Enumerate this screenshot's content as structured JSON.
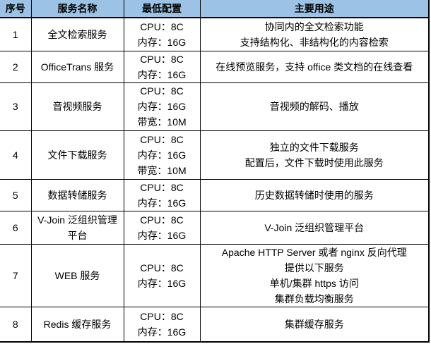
{
  "table": {
    "headers": {
      "no": "序号",
      "name": "服务名称",
      "config": "最低配置",
      "usage": "主要用途"
    },
    "rows": [
      {
        "no": "1",
        "name": "全文检索服务",
        "config": [
          "CPU：8C",
          "内存：16G"
        ],
        "usage": [
          "协同内的全文检索功能",
          "支持结构化、非结构化的内容检索"
        ]
      },
      {
        "no": "2",
        "name": "OfficeTrans 服务",
        "config": [
          "CPU：8C",
          "内存：16G"
        ],
        "usage": [
          "在线预览服务，支持 office 类文档的在线查看"
        ]
      },
      {
        "no": "3",
        "name": "音视频服务",
        "config": [
          "CPU：8C",
          "内存：16G",
          "带宽：10M"
        ],
        "usage": [
          "音视频的解码、播放"
        ]
      },
      {
        "no": "4",
        "name": "文件下载服务",
        "config": [
          "CPU：8C",
          "内存：16G",
          "带宽：10M"
        ],
        "usage": [
          "独立的文件下载服务",
          "配置后，文件下载时使用此服务"
        ]
      },
      {
        "no": "5",
        "name": "数据转储服务",
        "config": [
          "CPU：8C",
          "内存：16G"
        ],
        "usage": [
          "历史数据转储时使用的服务"
        ]
      },
      {
        "no": "6",
        "name": "V-Join 泛组织管理平台",
        "config": [
          "CPU：8C",
          "内存：16G"
        ],
        "usage": [
          "V-Join 泛组织管理平台"
        ]
      },
      {
        "no": "7",
        "name": "WEB 服务",
        "config": [
          "CPU：8C",
          "内存：16G"
        ],
        "usage": [
          "Apache HTTP Server 或者 nginx 反向代理",
          "提供以下服务",
          "单机/集群 https 访问",
          "集群负载均衡服务"
        ]
      },
      {
        "no": "8",
        "name": "Redis 缓存服务",
        "config": [
          "CPU：8C",
          "内存：16G"
        ],
        "usage": [
          "集群缓存服务"
        ]
      }
    ],
    "colors": {
      "header_bg": "#9CC3E6",
      "border": "#000000",
      "text": "#000000",
      "background": "#FFFFFF"
    }
  }
}
